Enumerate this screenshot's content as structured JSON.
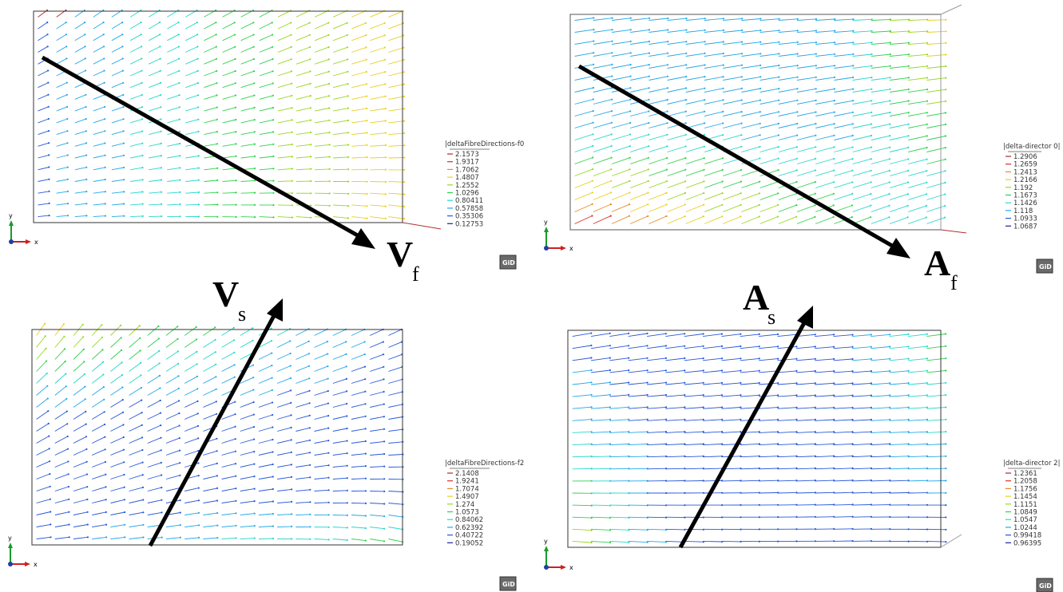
{
  "colors": {
    "scale": [
      "#b0282a",
      "#d7302b",
      "#e88a22",
      "#e8d020",
      "#9ad81f",
      "#2fd24b",
      "#26d8c8",
      "#24a8e8",
      "#2758d8",
      "#1b1f9a"
    ],
    "frame": "#222222",
    "arrow": "#000000"
  },
  "panels": [
    {
      "id": "vf",
      "legend": {
        "title": "|deltaFibreDirections-f0",
        "values": [
          "2.1573",
          "1.9317",
          "1.7062",
          "1.4807",
          "1.2552",
          "1.0296",
          "0.80411",
          "0.57858",
          "0.35306",
          "0.12753"
        ]
      },
      "label": {
        "letter": "V",
        "sub": "f"
      },
      "axes": {
        "x": "x",
        "y": "y"
      },
      "logo": "GiD",
      "field": "vf"
    },
    {
      "id": "af",
      "legend": {
        "title": "|delta-director 0|",
        "values": [
          "1.2906",
          "1.2659",
          "1.2413",
          "1.2166",
          "1.192",
          "1.1673",
          "1.1426",
          "1.118",
          "1.0933",
          "1.0687"
        ]
      },
      "label": {
        "letter": "A",
        "sub": "f"
      },
      "axes": {
        "x": "x",
        "y": "y"
      },
      "logo": "GiD",
      "field": "af"
    },
    {
      "id": "vs",
      "legend": {
        "title": "|deltaFibreDirections-f2",
        "values": [
          "2.1408",
          "1.9241",
          "1.7074",
          "1.4907",
          "1.274",
          "1.0573",
          "0.84062",
          "0.62392",
          "0.40722",
          "0.19052"
        ]
      },
      "label": {
        "letter": "V",
        "sub": "s"
      },
      "axes": {
        "x": "x",
        "y": "y"
      },
      "logo": "GiD",
      "field": "vs"
    },
    {
      "id": "as",
      "legend": {
        "title": "|delta-director 2|",
        "values": [
          "1.2361",
          "1.2058",
          "1.1756",
          "1.1454",
          "1.1151",
          "1.0849",
          "1.0547",
          "1.0244",
          "0.99418",
          "0.96395"
        ]
      },
      "label": {
        "letter": "A",
        "sub": "s"
      },
      "axes": {
        "x": "x",
        "y": "y"
      },
      "logo": "GiD",
      "field": "as"
    }
  ]
}
